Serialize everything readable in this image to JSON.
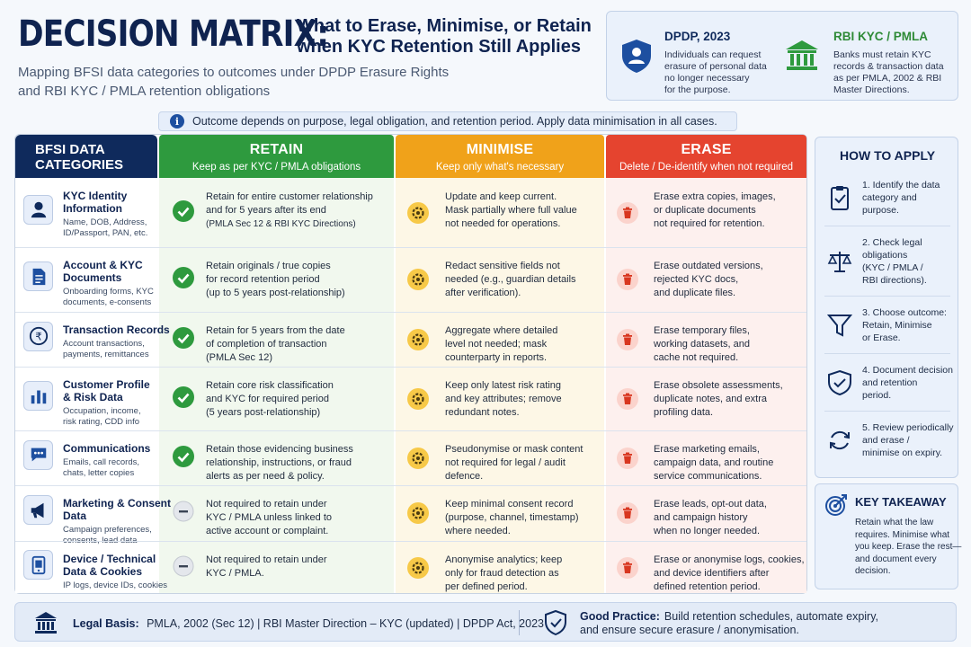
{
  "header": {
    "title": "DECISION MATRIX:",
    "title_side_line1": "What to Erase, Minimise, or Retain",
    "title_side_line2": "when KYC Retention Still Applies",
    "subtitle_line1": "Mapping BFSI data categories to outcomes under DPDP Erasure Rights",
    "subtitle_line2": "and RBI KYC / PMLA retention obligations"
  },
  "regulations": [
    {
      "title": "DPDP, 2023",
      "icon": "user-shield-icon",
      "lines": [
        "Individuals can request",
        "erasure of personal data",
        "no longer necessary",
        "for the purpose."
      ]
    },
    {
      "title": "RBI KYC / PMLA",
      "icon": "bank-icon",
      "lines": [
        "Banks must retain KYC",
        "records & transaction data",
        "as per PMLA, 2002 & RBI",
        "Master Directions."
      ]
    }
  ],
  "info_bar": "Outcome depends on purpose, legal obligation, and retention period. Apply data minimisation in all cases.",
  "columns": {
    "categories": {
      "line1": "BFSI DATA",
      "line2": "CATEGORIES"
    },
    "retain": {
      "title": "RETAIN",
      "sub": "Keep as per KYC / PMLA obligations"
    },
    "minimise": {
      "title": "MINIMISE",
      "sub": "Keep only what's necessary"
    },
    "erase": {
      "title": "ERASE",
      "sub": "Delete / De-identify when not required"
    }
  },
  "rows": [
    {
      "title": [
        "KYC Identity",
        "Information"
      ],
      "icon": "user-icon",
      "desc": [
        "Name, DOB, Address,",
        "ID/Passport, PAN, etc."
      ],
      "retain_status": "check",
      "retain": [
        "Retain for entire customer relationship",
        "and for 5 years after its end"
      ],
      "retain_note": "(PMLA Sec 12 & RBI KYC Directions)",
      "minimise": [
        "Update and keep current.",
        "Mask partially where full value",
        "not needed for operations."
      ],
      "erase": [
        "Erase extra copies, images,",
        "or duplicate documents",
        "not required for retention."
      ]
    },
    {
      "title": [
        "Account & KYC",
        "Documents"
      ],
      "icon": "document-icon",
      "desc": [
        "Onboarding forms, KYC",
        "documents, e-consents"
      ],
      "retain_status": "check",
      "retain": [
        "Retain originals / true copies",
        "for record retention period",
        "(up to 5 years post-relationship)"
      ],
      "minimise": [
        "Redact sensitive fields not",
        "needed (e.g., guardian details",
        "after verification)."
      ],
      "erase": [
        "Erase outdated versions,",
        "rejected KYC docs,",
        "and duplicate files."
      ]
    },
    {
      "title": [
        "Transaction Records"
      ],
      "icon": "rupee-icon",
      "desc": [
        "Account transactions,",
        "payments, remittances"
      ],
      "retain_status": "check",
      "retain": [
        "Retain for 5 years from the date",
        "of completion of transaction",
        "(PMLA Sec 12)"
      ],
      "minimise": [
        "Aggregate where detailed",
        "level not needed; mask",
        "counterparty in reports."
      ],
      "erase": [
        "Erase temporary files,",
        "working datasets, and",
        "cache not required."
      ]
    },
    {
      "title": [
        "Customer Profile",
        "& Risk Data"
      ],
      "icon": "bar-chart-icon",
      "desc": [
        "Occupation, income,",
        "risk rating, CDD info"
      ],
      "retain_status": "check",
      "retain": [
        "Retain core risk classification",
        "and KYC for required period",
        "(5 years post-relationship)"
      ],
      "minimise": [
        "Keep only latest risk rating",
        "and key attributes; remove",
        "redundant notes."
      ],
      "erase": [
        "Erase obsolete assessments,",
        "duplicate notes, and extra",
        "profiling data."
      ]
    },
    {
      "title": [
        "Communications"
      ],
      "icon": "chat-icon",
      "desc": [
        "Emails, call records,",
        "chats, letter copies"
      ],
      "retain_status": "check",
      "retain": [
        "Retain those evidencing business",
        "relationship, instructions, or fraud",
        "alerts as per need & policy."
      ],
      "minimise": [
        "Pseudonymise or mask content",
        "not required for legal / audit",
        "defence."
      ],
      "erase": [
        "Erase marketing emails,",
        "campaign data, and routine",
        "service communications."
      ]
    },
    {
      "title": [
        "Marketing & Consent",
        "Data"
      ],
      "icon": "megaphone-icon",
      "desc": [
        "Campaign preferences,",
        "consents, lead data"
      ],
      "retain_status": "dash",
      "retain": [
        "Not required to retain under",
        "KYC / PMLA unless linked to",
        "active account or complaint."
      ],
      "minimise": [
        "Keep minimal consent record",
        "(purpose, channel, timestamp)",
        "where needed."
      ],
      "erase": [
        "Erase leads, opt-out data,",
        "and campaign history",
        "when no longer needed."
      ]
    },
    {
      "title": [
        "Device / Technical",
        "Data & Cookies"
      ],
      "icon": "device-icon",
      "desc": [
        "IP logs, device IDs, cookies"
      ],
      "retain_status": "dash",
      "retain": [
        "Not required to retain under",
        "KYC / PMLA."
      ],
      "minimise": [
        "Anonymise analytics; keep",
        "only for fraud detection as",
        "per defined period."
      ],
      "erase": [
        "Erase or anonymise logs, cookies,",
        "and device identifiers after",
        "defined retention period."
      ]
    }
  ],
  "how_to_apply": {
    "title": "HOW TO APPLY",
    "steps": [
      {
        "icon": "clipboard-check-icon",
        "lines": [
          "1. Identify the data",
          "category and",
          "purpose."
        ]
      },
      {
        "icon": "scales-icon",
        "lines": [
          "2. Check legal",
          "obligations",
          "(KYC / PMLA /",
          "RBI directions)."
        ]
      },
      {
        "icon": "funnel-icon",
        "lines": [
          "3. Choose outcome:",
          "Retain, Minimise",
          "or Erase."
        ]
      },
      {
        "icon": "shield-check-icon",
        "lines": [
          "4. Document decision",
          "and retention",
          "period."
        ]
      },
      {
        "icon": "refresh-icon",
        "lines": [
          "5. Review periodically",
          "and erase /",
          "minimise on expiry."
        ]
      }
    ]
  },
  "key_takeaway": {
    "title": "KEY TAKEAWAY",
    "icon": "target-icon",
    "lines": [
      "Retain what the law",
      "requires. Minimise what",
      "you keep. Erase the rest—",
      "and document every",
      "decision."
    ]
  },
  "footer": {
    "legal_label": "Legal Basis:",
    "legal_text": "PMLA, 2002 (Sec 12)  |  RBI Master Direction – KYC (updated)  |  DPDP Act, 2023",
    "practice_label": "Good Practice:",
    "practice_line1": "Build retention schedules, automate expiry,",
    "practice_line2": "and ensure secure erasure / anonymisation."
  },
  "colors": {
    "navy": "#0f2a5c",
    "retain": "#2e9a3e",
    "minimise": "#f0a21a",
    "erase": "#e5442f"
  }
}
